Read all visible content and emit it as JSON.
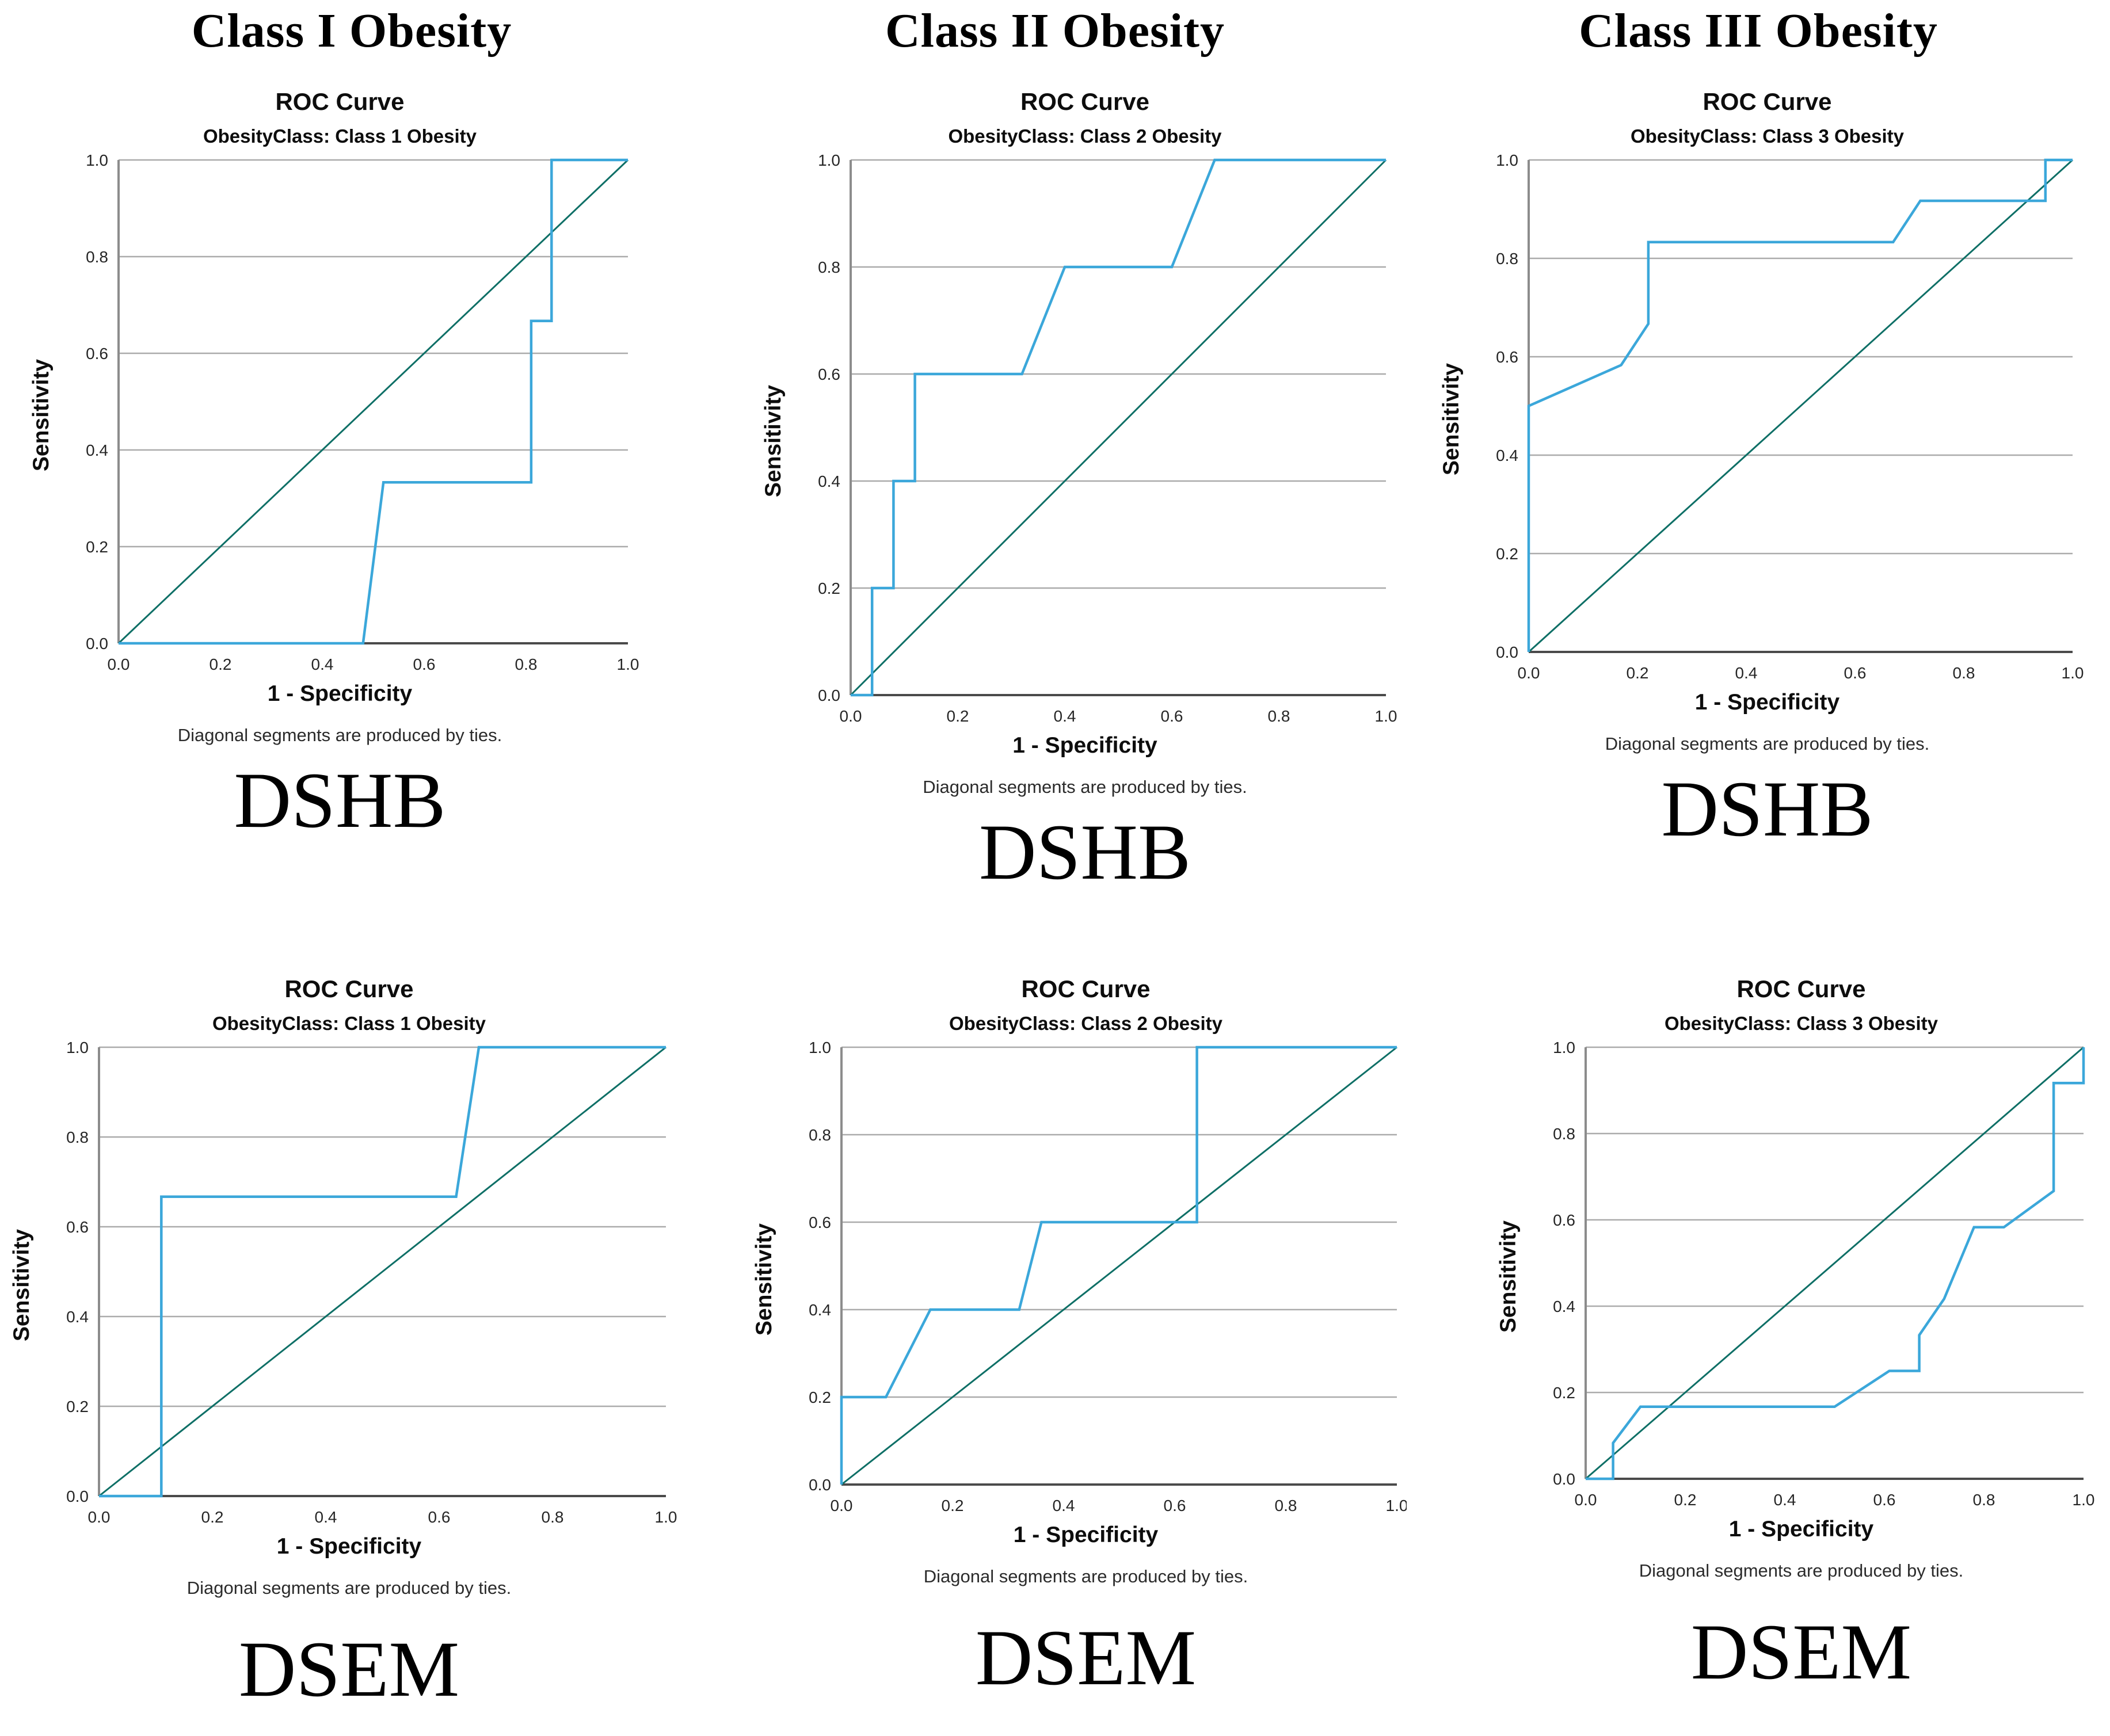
{
  "colors": {
    "roc_curve": "#3BA7DA",
    "reference_line": "#0E6F66",
    "gridline": "#ABABAB",
    "axis_y": "#8C8C8C",
    "axis_x": "#4A4A4A",
    "tick_text": "#262626"
  },
  "chart_data": [
    {
      "type": "line",
      "column_title": "Class I Obesity",
      "method_label": "DSHB",
      "title": "ROC Curve",
      "subtitle": "ObesityClass: Class 1 Obesity",
      "xlabel": "1 - Specificity",
      "ylabel": "Sensitivity",
      "footnote": "Diagonal segments are produced by ties.",
      "xlim": [
        0,
        1
      ],
      "ylim": [
        0,
        1
      ],
      "xticks": [
        "0.0",
        "0.2",
        "0.4",
        "0.6",
        "0.8",
        "1.0"
      ],
      "yticks": [
        "0.0",
        "0.2",
        "0.4",
        "0.6",
        "0.8",
        "1.0"
      ],
      "grid": "horizontal",
      "legend": "none",
      "series": [
        {
          "name": "ROC curve",
          "color": "#3BA7DA",
          "points": [
            [
              0,
              0
            ],
            [
              0.48,
              0
            ],
            [
              0.52,
              0.333
            ],
            [
              0.81,
              0.333
            ],
            [
              0.81,
              0.667
            ],
            [
              0.85,
              0.667
            ],
            [
              0.85,
              1
            ],
            [
              1,
              1
            ]
          ]
        },
        {
          "name": "Reference diagonal",
          "color": "#0E6F66",
          "points": [
            [
              0,
              0
            ],
            [
              1,
              1
            ]
          ]
        }
      ]
    },
    {
      "type": "line",
      "column_title": "Class II Obesity",
      "method_label": "DSHB",
      "title": "ROC Curve",
      "subtitle": "ObesityClass: Class 2 Obesity",
      "xlabel": "1 - Specificity",
      "ylabel": "Sensitivity",
      "footnote": "Diagonal segments are produced by ties.",
      "xlim": [
        0,
        1
      ],
      "ylim": [
        0,
        1
      ],
      "xticks": [
        "0.0",
        "0.2",
        "0.4",
        "0.6",
        "0.8",
        "1.0"
      ],
      "yticks": [
        "0.0",
        "0.2",
        "0.4",
        "0.6",
        "0.8",
        "1.0"
      ],
      "grid": "horizontal",
      "legend": "none",
      "series": [
        {
          "name": "ROC curve",
          "color": "#3BA7DA",
          "points": [
            [
              0,
              0
            ],
            [
              0.04,
              0
            ],
            [
              0.04,
              0.2
            ],
            [
              0.08,
              0.2
            ],
            [
              0.08,
              0.4
            ],
            [
              0.12,
              0.4
            ],
            [
              0.12,
              0.6
            ],
            [
              0.32,
              0.6
            ],
            [
              0.4,
              0.8
            ],
            [
              0.6,
              0.8
            ],
            [
              0.68,
              1
            ],
            [
              1,
              1
            ]
          ]
        },
        {
          "name": "Reference diagonal",
          "color": "#0E6F66",
          "points": [
            [
              0,
              0
            ],
            [
              1,
              1
            ]
          ]
        }
      ]
    },
    {
      "type": "line",
      "column_title": "Class III Obesity",
      "method_label": "DSHB",
      "title": "ROC Curve",
      "subtitle": "ObesityClass: Class 3 Obesity",
      "xlabel": "1 - Specificity",
      "ylabel": "Sensitivity",
      "footnote": "Diagonal segments are produced by ties.",
      "xlim": [
        0,
        1
      ],
      "ylim": [
        0,
        1
      ],
      "xticks": [
        "0.0",
        "0.2",
        "0.4",
        "0.6",
        "0.8",
        "1.0"
      ],
      "yticks": [
        "0.0",
        "0.2",
        "0.4",
        "0.6",
        "0.8",
        "1.0"
      ],
      "grid": "horizontal",
      "legend": "none",
      "series": [
        {
          "name": "ROC curve",
          "color": "#3BA7DA",
          "points": [
            [
              0,
              0
            ],
            [
              0,
              0.5
            ],
            [
              0.17,
              0.583
            ],
            [
              0.22,
              0.667
            ],
            [
              0.22,
              0.833
            ],
            [
              0.67,
              0.833
            ],
            [
              0.72,
              0.917
            ],
            [
              0.95,
              0.917
            ],
            [
              0.95,
              1
            ],
            [
              1,
              1
            ]
          ]
        },
        {
          "name": "Reference diagonal",
          "color": "#0E6F66",
          "points": [
            [
              0,
              0
            ],
            [
              1,
              1
            ]
          ]
        }
      ]
    },
    {
      "type": "line",
      "method_label": "DSEM",
      "title": "ROC Curve",
      "subtitle": "ObesityClass: Class 1 Obesity",
      "xlabel": "1 - Specificity",
      "ylabel": "Sensitivity",
      "footnote": "Diagonal segments are produced by ties.",
      "xlim": [
        0,
        1
      ],
      "ylim": [
        0,
        1
      ],
      "xticks": [
        "0.0",
        "0.2",
        "0.4",
        "0.6",
        "0.8",
        "1.0"
      ],
      "yticks": [
        "0.0",
        "0.2",
        "0.4",
        "0.6",
        "0.8",
        "1.0"
      ],
      "grid": "horizontal",
      "legend": "none",
      "series": [
        {
          "name": "ROC curve",
          "color": "#3BA7DA",
          "points": [
            [
              0,
              0
            ],
            [
              0.11,
              0
            ],
            [
              0.11,
              0.667
            ],
            [
              0.63,
              0.667
            ],
            [
              0.67,
              1
            ],
            [
              1,
              1
            ]
          ]
        },
        {
          "name": "Reference diagonal",
          "color": "#0E6F66",
          "points": [
            [
              0,
              0
            ],
            [
              1,
              1
            ]
          ]
        }
      ]
    },
    {
      "type": "line",
      "method_label": "DSEM",
      "title": "ROC Curve",
      "subtitle": "ObesityClass: Class 2 Obesity",
      "xlabel": "1 - Specificity",
      "ylabel": "Sensitivity",
      "footnote": "Diagonal segments are produced by ties.",
      "xlim": [
        0,
        1
      ],
      "ylim": [
        0,
        1
      ],
      "xticks": [
        "0.0",
        "0.2",
        "0.4",
        "0.6",
        "0.8",
        "1.0"
      ],
      "yticks": [
        "0.0",
        "0.2",
        "0.4",
        "0.6",
        "0.8",
        "1.0"
      ],
      "grid": "horizontal",
      "legend": "none",
      "series": [
        {
          "name": "ROC curve",
          "color": "#3BA7DA",
          "points": [
            [
              0,
              0
            ],
            [
              0,
              0.2
            ],
            [
              0.08,
              0.2
            ],
            [
              0.16,
              0.4
            ],
            [
              0.32,
              0.4
            ],
            [
              0.36,
              0.6
            ],
            [
              0.64,
              0.6
            ],
            [
              0.64,
              1
            ],
            [
              1,
              1
            ]
          ]
        },
        {
          "name": "Reference diagonal",
          "color": "#0E6F66",
          "points": [
            [
              0,
              0
            ],
            [
              1,
              1
            ]
          ]
        }
      ]
    },
    {
      "type": "line",
      "method_label": "DSEM",
      "title": "ROC Curve",
      "subtitle": "ObesityClass: Class 3 Obesity",
      "xlabel": "1 - Specificity",
      "ylabel": "Sensitivity",
      "footnote": "Diagonal segments are produced by ties.",
      "xlim": [
        0,
        1
      ],
      "ylim": [
        0,
        1
      ],
      "xticks": [
        "0.0",
        "0.2",
        "0.4",
        "0.6",
        "0.8",
        "1.0"
      ],
      "yticks": [
        "0.0",
        "0.2",
        "0.4",
        "0.6",
        "0.8",
        "1.0"
      ],
      "grid": "horizontal",
      "legend": "none",
      "series": [
        {
          "name": "ROC curve",
          "color": "#3BA7DA",
          "points": [
            [
              0,
              0
            ],
            [
              0.055,
              0
            ],
            [
              0.055,
              0.083
            ],
            [
              0.11,
              0.167
            ],
            [
              0.5,
              0.167
            ],
            [
              0.61,
              0.25
            ],
            [
              0.67,
              0.25
            ],
            [
              0.67,
              0.333
            ],
            [
              0.72,
              0.417
            ],
            [
              0.78,
              0.583
            ],
            [
              0.84,
              0.583
            ],
            [
              0.94,
              0.667
            ],
            [
              0.94,
              0.917
            ],
            [
              1,
              0.917
            ],
            [
              1,
              1
            ]
          ]
        },
        {
          "name": "Reference diagonal",
          "color": "#0E6F66",
          "points": [
            [
              0,
              0
            ],
            [
              1,
              1
            ]
          ]
        }
      ]
    }
  ]
}
